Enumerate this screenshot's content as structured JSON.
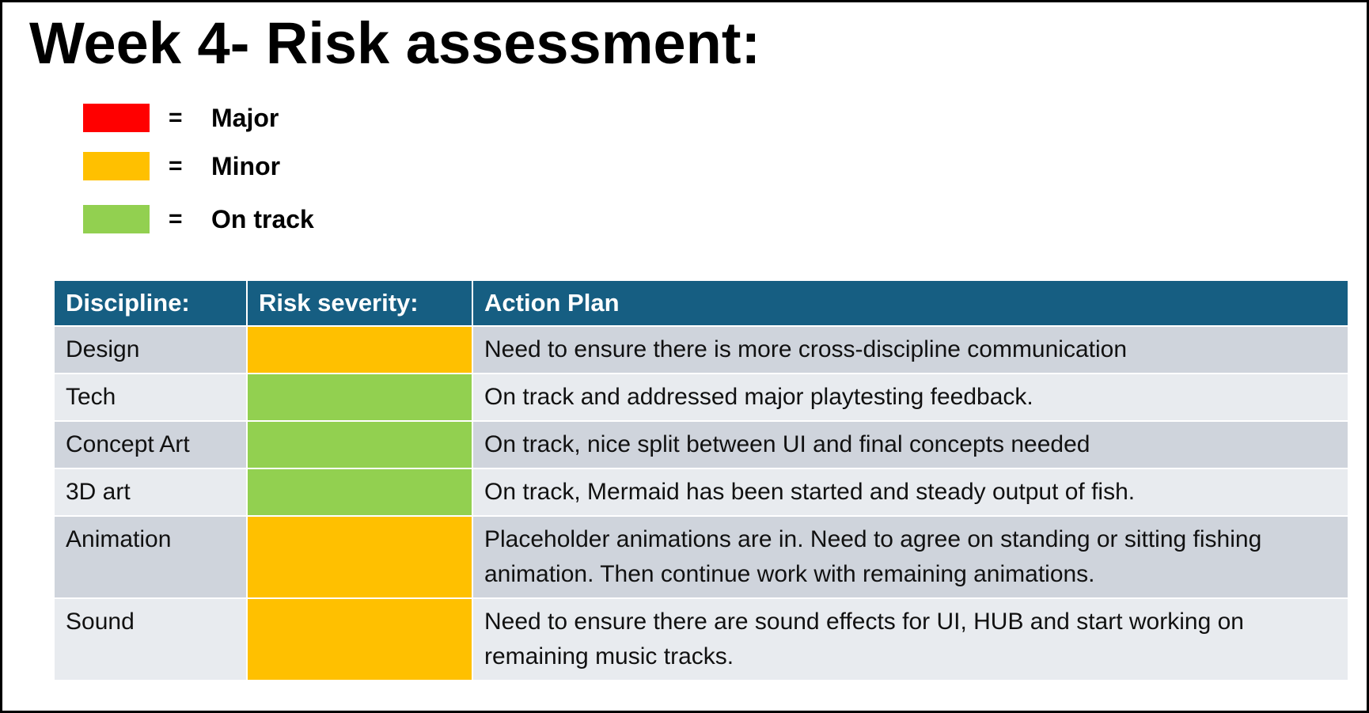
{
  "title": "Week 4- Risk assessment:",
  "legend": [
    {
      "color": "#ff0000",
      "eq": "=",
      "label": "Major"
    },
    {
      "color": "#ffc000",
      "eq": "=",
      "label": "Minor"
    },
    {
      "color": "#92d050",
      "eq": "=",
      "label": "On track"
    }
  ],
  "table": {
    "headers": [
      "Discipline:",
      "Risk severity:",
      "Action Plan"
    ],
    "rows": [
      {
        "discipline": "Design",
        "severity": "Minor",
        "severity_color": "#ffc000",
        "action": "Need to ensure there is more cross-discipline communication"
      },
      {
        "discipline": "Tech",
        "severity": "On track",
        "severity_color": "#92d050",
        "action": "On track and addressed major playtesting feedback."
      },
      {
        "discipline": "Concept Art",
        "severity": "On track",
        "severity_color": "#92d050",
        "action": "On track, nice split between UI and final concepts needed"
      },
      {
        "discipline": "3D art",
        "severity": "On track",
        "severity_color": "#92d050",
        "action": "On track, Mermaid has been started and steady output of fish."
      },
      {
        "discipline": "Animation",
        "severity": "Minor",
        "severity_color": "#ffc000",
        "action": "Placeholder animations are in. Need to agree on standing or sitting fishing animation. Then continue work with remaining animations."
      },
      {
        "discipline": "Sound",
        "severity": "Minor",
        "severity_color": "#ffc000",
        "action": "Need to ensure there are sound effects for UI, HUB and start working on remaining music tracks."
      }
    ]
  }
}
